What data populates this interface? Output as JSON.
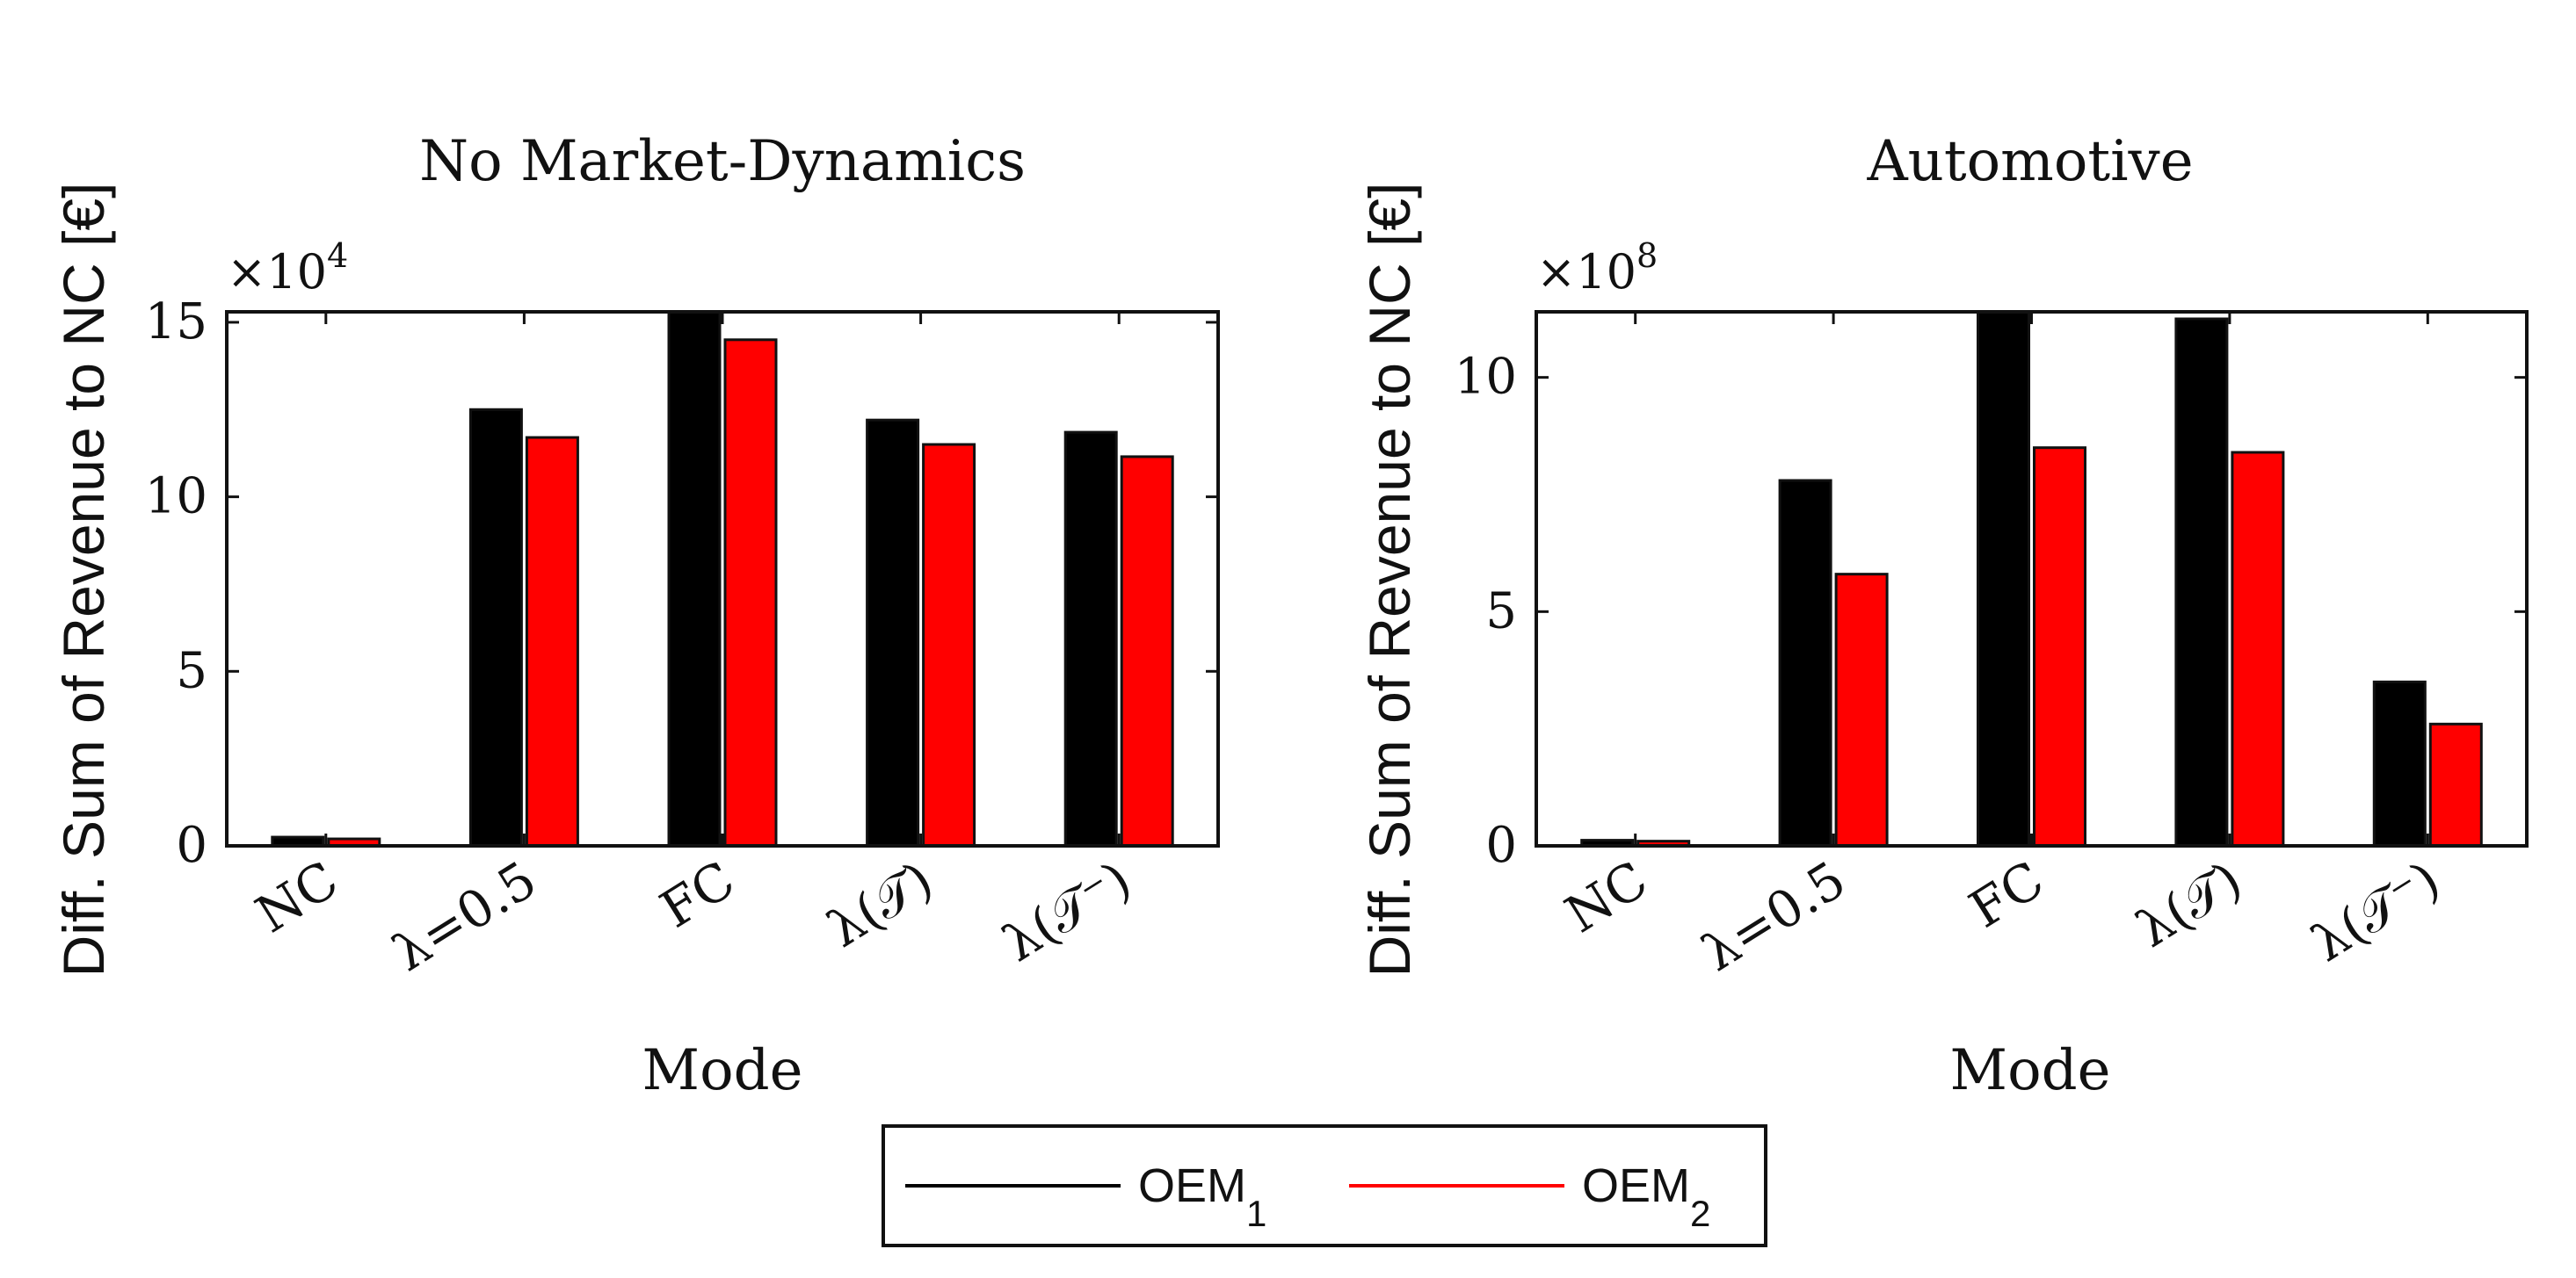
{
  "figure": {
    "legend": {
      "entries": [
        {
          "name": "OEM",
          "sub": "1",
          "color": "#000000"
        },
        {
          "name": "OEM",
          "sub": "2",
          "color": "#ff0000"
        }
      ]
    }
  },
  "chart_data": [
    {
      "type": "bar",
      "title": "No Market-Dynamics",
      "xlabel": "Mode",
      "ylabel": "Diff. Sum of Revenue to NC [€]",
      "exponent_label": "×10",
      "exponent_power": "4",
      "categories": [
        "NC",
        "λ=0.5",
        "FC",
        "λ(𝒯)",
        "λ(𝒯⁻)"
      ],
      "ylim": [
        0,
        15.3
      ],
      "yticks": [
        0,
        5,
        10,
        15
      ],
      "ytick_labels": [
        "0",
        "5",
        "10",
        "15"
      ],
      "series": [
        {
          "name": "OEM1",
          "color": "#000000",
          "values": [
            0.25,
            12.5,
            15.3,
            12.2,
            11.85
          ]
        },
        {
          "name": "OEM2",
          "color": "#ff0000",
          "values": [
            0.2,
            11.7,
            14.5,
            11.5,
            11.15
          ]
        }
      ]
    },
    {
      "type": "bar",
      "title": "Automotive",
      "xlabel": "Mode",
      "ylabel": "Diff. Sum of Revenue to NC [€]",
      "exponent_label": "×10",
      "exponent_power": "8",
      "categories": [
        "NC",
        "λ=0.5",
        "FC",
        "λ(𝒯)",
        "λ(𝒯⁻)"
      ],
      "ylim": [
        0,
        11.4
      ],
      "yticks": [
        0,
        5,
        10
      ],
      "ytick_labels": [
        "0",
        "5",
        "10"
      ],
      "series": [
        {
          "name": "OEM1",
          "color": "#000000",
          "values": [
            0.12,
            7.8,
            11.4,
            11.25,
            3.5
          ]
        },
        {
          "name": "OEM2",
          "color": "#ff0000",
          "values": [
            0.1,
            5.8,
            8.5,
            8.4,
            2.6
          ]
        }
      ]
    }
  ]
}
